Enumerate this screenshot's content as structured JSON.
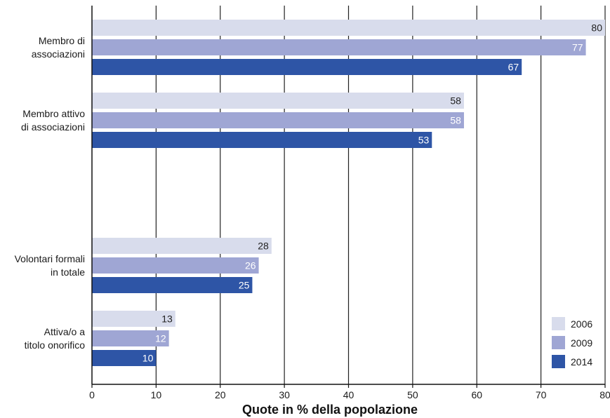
{
  "chart_data": {
    "type": "bar",
    "orientation": "horizontal",
    "categories": [
      [
        "Membro di",
        "associazioni"
      ],
      [
        "Membro attivo",
        "di associazioni"
      ],
      [
        "Volontari formali",
        "in totale"
      ],
      [
        "Attiva/o a",
        "titolo onorifico"
      ]
    ],
    "series": [
      {
        "name": "2006",
        "color": "#d8dcec",
        "label_color": "#222222",
        "values": [
          80,
          58,
          28,
          13
        ]
      },
      {
        "name": "2009",
        "color": "#9fa6d4",
        "label_color": "#ffffff",
        "values": [
          77,
          58,
          26,
          12
        ]
      },
      {
        "name": "2014",
        "color": "#2e55a6",
        "label_color": "#ffffff",
        "values": [
          67,
          53,
          25,
          10
        ]
      }
    ],
    "xlabel": "Quote in % della popolazione",
    "xlim": [
      0,
      80
    ],
    "xticks": [
      0,
      10,
      20,
      30,
      40,
      50,
      60,
      70,
      80
    ],
    "grid": true,
    "legend_position": "bottom-right"
  }
}
